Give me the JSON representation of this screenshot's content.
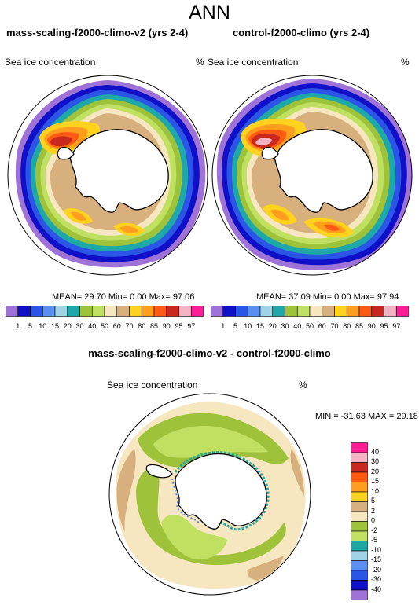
{
  "title": "ANN",
  "top_left": {
    "title": "mass-scaling-f2000-climo-v2 (yrs 2-4)",
    "variable": "Sea ice concentration",
    "units": "%",
    "stats": {
      "mean_label": "MEAN=",
      "mean": "29.70",
      "min_label": "Min=",
      "min": "0.00",
      "max_label": "Max=",
      "max": "97.06"
    }
  },
  "top_right": {
    "title": "control-f2000-climo (yrs 2-4)",
    "variable": "Sea ice concentration",
    "units": "%",
    "stats": {
      "mean_label": "MEAN=",
      "mean": "37.09",
      "min_label": "Min=",
      "min": "0.00",
      "max_label": "Max=",
      "max": "97.94"
    }
  },
  "bottom": {
    "title": "mass-scaling-f2000-climo-v2 - control-f2000-climo",
    "variable": "Sea ice concentration",
    "units": "%",
    "stats": {
      "min_label": "MIN =",
      "min": "-31.63",
      "max_label": "MAX =",
      "max": "29.18"
    }
  },
  "colorbar_top": {
    "ticks": [
      "1",
      "5",
      "10",
      "15",
      "20",
      "30",
      "40",
      "50",
      "60",
      "70",
      "80",
      "85",
      "90",
      "95",
      "97"
    ],
    "colors": [
      "#9e72d6",
      "#1010c8",
      "#2a55e6",
      "#5a8ef0",
      "#9fd4e6",
      "#1ea8a8",
      "#9ec23a",
      "#bfe060",
      "#f6e7c0",
      "#d7b07e",
      "#ffd21e",
      "#ff9e1e",
      "#ff5a14",
      "#c8281e",
      "#f5b4c3",
      "#ff1e96"
    ]
  },
  "colorbar_bottom": {
    "ticks": [
      "40",
      "30",
      "20",
      "15",
      "10",
      "5",
      "2",
      "0",
      "-2",
      "-5",
      "-10",
      "-15",
      "-20",
      "-30",
      "-40"
    ],
    "colors": [
      "#ff1e96",
      "#f5b4c3",
      "#c8281e",
      "#ff5a14",
      "#ff9e1e",
      "#ffd21e",
      "#d7b07e",
      "#f6e7c0",
      "#9ec23a",
      "#bfe060",
      "#1ea8a8",
      "#9fd4e6",
      "#5a8ef0",
      "#2a55e6",
      "#1010c8",
      "#9e72d6"
    ]
  }
}
